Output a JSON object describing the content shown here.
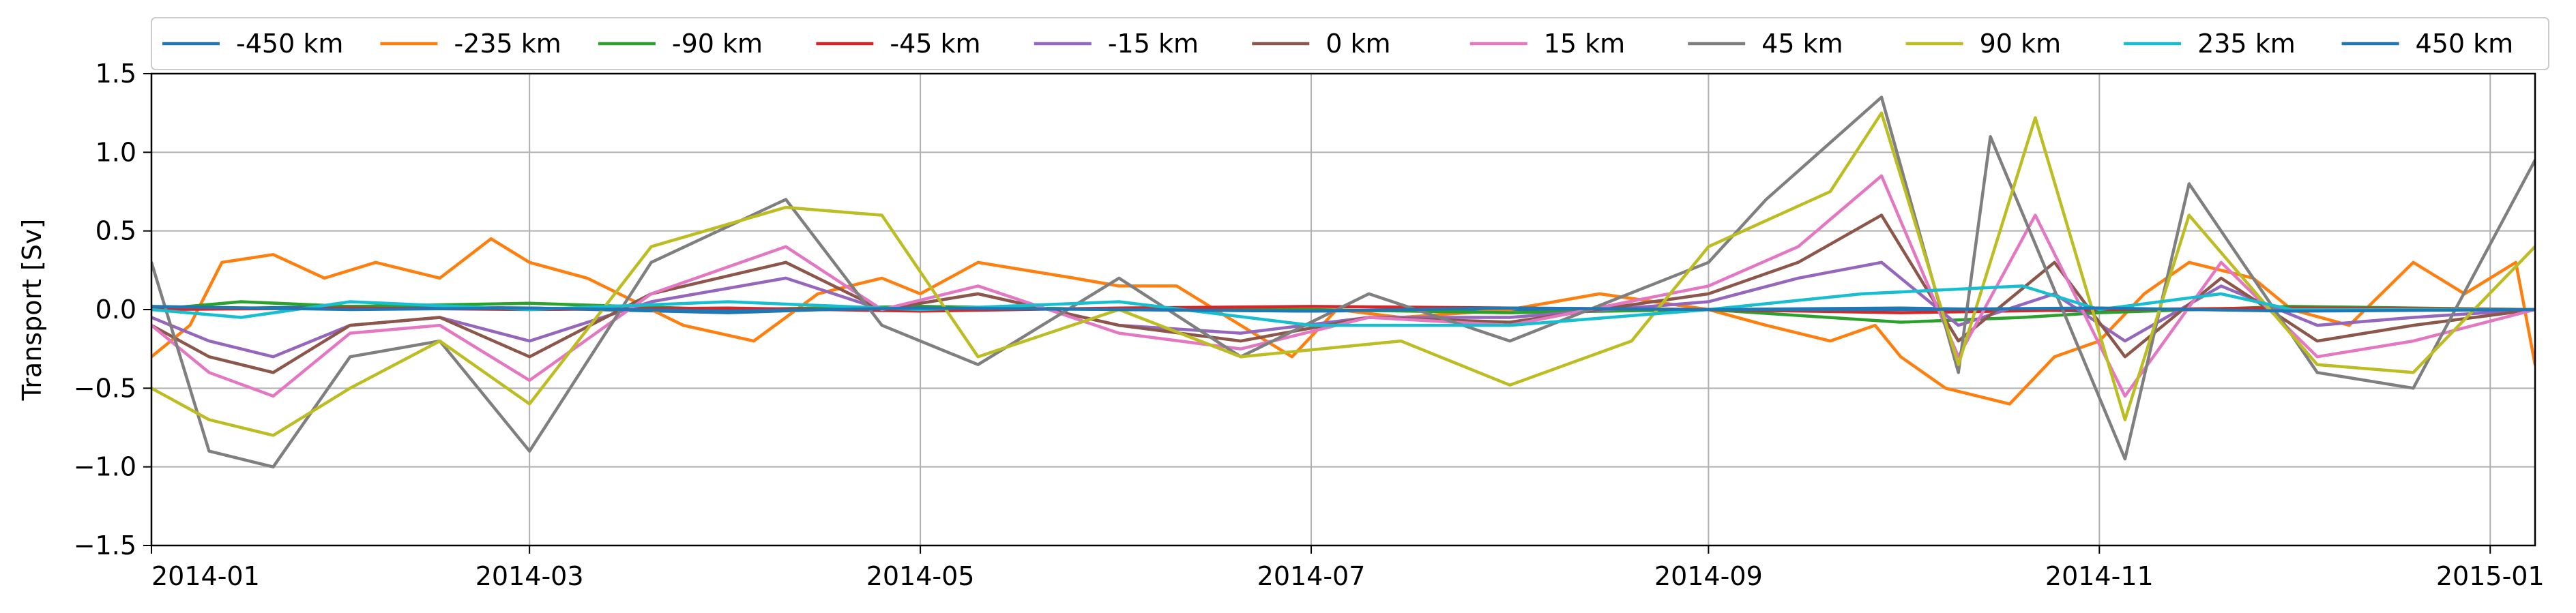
{
  "chart_data": {
    "type": "line",
    "title": "",
    "xlabel": "",
    "ylabel": "Transport [Sv]",
    "x_range": [
      "2014-01-01",
      "2015-01-08"
    ],
    "ylim": [
      -1.5,
      1.5
    ],
    "x_ticks": [
      "2014-01",
      "2014-03",
      "2014-05",
      "2014-07",
      "2014-09",
      "2014-11",
      "2015-01"
    ],
    "y_ticks": [
      "1.5",
      "1.0",
      "0.5",
      "0.0",
      "−0.5",
      "−1.0",
      "−1.5"
    ],
    "grid": true,
    "legend_position": "top",
    "series": [
      {
        "name": "-450 km",
        "color": "#1f77b4",
        "values": [
          [
            "2014-01-01",
            0.0
          ],
          [
            "2014-02-01",
            0.02
          ],
          [
            "2014-03-01",
            0.01
          ],
          [
            "2014-04-01",
            -0.02
          ],
          [
            "2014-05-01",
            0.02
          ],
          [
            "2014-06-01",
            0.0
          ],
          [
            "2014-07-01",
            -0.01
          ],
          [
            "2014-08-01",
            0.0
          ],
          [
            "2014-09-01",
            0.0
          ],
          [
            "2014-10-01",
            0.01
          ],
          [
            "2014-11-01",
            -0.01
          ],
          [
            "2014-12-01",
            0.01
          ],
          [
            "2015-01-08",
            0.0
          ]
        ]
      },
      {
        "name": "-235 km",
        "color": "#ff7f0e",
        "values": [
          [
            "2014-01-01",
            -0.3
          ],
          [
            "2014-01-07",
            -0.1
          ],
          [
            "2014-01-12",
            0.3
          ],
          [
            "2014-01-20",
            0.35
          ],
          [
            "2014-01-28",
            0.2
          ],
          [
            "2014-02-05",
            0.3
          ],
          [
            "2014-02-15",
            0.2
          ],
          [
            "2014-02-23",
            0.45
          ],
          [
            "2014-03-01",
            0.3
          ],
          [
            "2014-03-10",
            0.2
          ],
          [
            "2014-03-20",
            0.0
          ],
          [
            "2014-03-25",
            -0.1
          ],
          [
            "2014-04-05",
            -0.2
          ],
          [
            "2014-04-15",
            0.1
          ],
          [
            "2014-04-25",
            0.2
          ],
          [
            "2014-05-01",
            0.1
          ],
          [
            "2014-05-10",
            0.3
          ],
          [
            "2014-05-25",
            0.2
          ],
          [
            "2014-06-01",
            0.15
          ],
          [
            "2014-06-10",
            0.15
          ],
          [
            "2014-06-20",
            -0.1
          ],
          [
            "2014-06-28",
            -0.3
          ],
          [
            "2014-07-05",
            0.0
          ],
          [
            "2014-07-15",
            -0.05
          ],
          [
            "2014-08-01",
            0.0
          ],
          [
            "2014-08-15",
            0.1
          ],
          [
            "2014-09-01",
            0.0
          ],
          [
            "2014-09-10",
            -0.1
          ],
          [
            "2014-09-20",
            -0.2
          ],
          [
            "2014-09-27",
            -0.1
          ],
          [
            "2014-10-01",
            -0.3
          ],
          [
            "2014-10-08",
            -0.5
          ],
          [
            "2014-10-18",
            -0.6
          ],
          [
            "2014-10-25",
            -0.3
          ],
          [
            "2014-11-01",
            -0.2
          ],
          [
            "2014-11-08",
            0.1
          ],
          [
            "2014-11-15",
            0.3
          ],
          [
            "2014-11-25",
            0.2
          ],
          [
            "2014-12-01",
            0.0
          ],
          [
            "2014-12-10",
            -0.1
          ],
          [
            "2014-12-20",
            0.3
          ],
          [
            "2014-12-28",
            0.1
          ],
          [
            "2015-01-05",
            0.3
          ],
          [
            "2015-01-08",
            -0.35
          ]
        ]
      },
      {
        "name": "-90 km",
        "color": "#2ca02c",
        "values": [
          [
            "2014-01-01",
            0.0
          ],
          [
            "2014-01-15",
            0.05
          ],
          [
            "2014-02-01",
            0.02
          ],
          [
            "2014-03-01",
            0.04
          ],
          [
            "2014-04-01",
            0.0
          ],
          [
            "2014-05-01",
            0.02
          ],
          [
            "2014-06-01",
            0.0
          ],
          [
            "2014-07-01",
            0.0
          ],
          [
            "2014-08-01",
            -0.02
          ],
          [
            "2014-09-01",
            0.0
          ],
          [
            "2014-10-01",
            -0.08
          ],
          [
            "2014-10-20",
            -0.05
          ],
          [
            "2014-11-01",
            -0.02
          ],
          [
            "2014-12-01",
            0.02
          ],
          [
            "2015-01-08",
            0.0
          ]
        ]
      },
      {
        "name": "-45 km",
        "color": "#d62728",
        "values": [
          [
            "2014-01-01",
            0.0
          ],
          [
            "2014-02-01",
            0.01
          ],
          [
            "2014-03-01",
            0.0
          ],
          [
            "2014-04-01",
            0.01
          ],
          [
            "2014-05-01",
            -0.01
          ],
          [
            "2014-06-01",
            0.01
          ],
          [
            "2014-07-01",
            0.02
          ],
          [
            "2014-08-01",
            0.01
          ],
          [
            "2014-09-01",
            0.0
          ],
          [
            "2014-10-01",
            -0.02
          ],
          [
            "2014-11-01",
            0.0
          ],
          [
            "2014-12-01",
            0.01
          ],
          [
            "2015-01-08",
            0.0
          ]
        ]
      },
      {
        "name": "-15 km",
        "color": "#9467bd",
        "values": [
          [
            "2014-01-01",
            -0.05
          ],
          [
            "2014-01-10",
            -0.2
          ],
          [
            "2014-01-20",
            -0.3
          ],
          [
            "2014-02-01",
            -0.1
          ],
          [
            "2014-02-15",
            -0.05
          ],
          [
            "2014-03-01",
            -0.2
          ],
          [
            "2014-03-20",
            0.05
          ],
          [
            "2014-04-10",
            0.2
          ],
          [
            "2014-04-25",
            0.0
          ],
          [
            "2014-05-10",
            0.1
          ],
          [
            "2014-06-01",
            -0.1
          ],
          [
            "2014-06-20",
            -0.15
          ],
          [
            "2014-07-10",
            -0.05
          ],
          [
            "2014-08-01",
            -0.05
          ],
          [
            "2014-09-01",
            0.05
          ],
          [
            "2014-09-15",
            0.2
          ],
          [
            "2014-09-28",
            0.3
          ],
          [
            "2014-10-10",
            -0.1
          ],
          [
            "2014-10-25",
            0.1
          ],
          [
            "2014-11-05",
            -0.2
          ],
          [
            "2014-11-20",
            0.15
          ],
          [
            "2014-12-05",
            -0.1
          ],
          [
            "2014-12-20",
            -0.05
          ],
          [
            "2015-01-08",
            0.0
          ]
        ]
      },
      {
        "name": "0 km",
        "color": "#8c564b",
        "values": [
          [
            "2014-01-01",
            -0.1
          ],
          [
            "2014-01-10",
            -0.3
          ],
          [
            "2014-01-20",
            -0.4
          ],
          [
            "2014-02-01",
            -0.1
          ],
          [
            "2014-02-15",
            -0.05
          ],
          [
            "2014-03-01",
            -0.3
          ],
          [
            "2014-03-20",
            0.1
          ],
          [
            "2014-04-10",
            0.3
          ],
          [
            "2014-04-25",
            0.0
          ],
          [
            "2014-05-10",
            0.1
          ],
          [
            "2014-06-01",
            -0.1
          ],
          [
            "2014-06-20",
            -0.2
          ],
          [
            "2014-07-10",
            -0.05
          ],
          [
            "2014-08-01",
            -0.08
          ],
          [
            "2014-09-01",
            0.1
          ],
          [
            "2014-09-15",
            0.3
          ],
          [
            "2014-09-28",
            0.6
          ],
          [
            "2014-10-10",
            -0.2
          ],
          [
            "2014-10-25",
            0.3
          ],
          [
            "2014-11-05",
            -0.3
          ],
          [
            "2014-11-20",
            0.2
          ],
          [
            "2014-12-05",
            -0.2
          ],
          [
            "2014-12-20",
            -0.1
          ],
          [
            "2015-01-08",
            0.0
          ]
        ]
      },
      {
        "name": "15 km",
        "color": "#e377c2",
        "values": [
          [
            "2014-01-01",
            -0.1
          ],
          [
            "2014-01-10",
            -0.4
          ],
          [
            "2014-01-20",
            -0.55
          ],
          [
            "2014-02-01",
            -0.15
          ],
          [
            "2014-02-15",
            -0.1
          ],
          [
            "2014-03-01",
            -0.45
          ],
          [
            "2014-03-20",
            0.1
          ],
          [
            "2014-04-10",
            0.4
          ],
          [
            "2014-04-25",
            0.0
          ],
          [
            "2014-05-10",
            0.15
          ],
          [
            "2014-06-01",
            -0.15
          ],
          [
            "2014-06-20",
            -0.25
          ],
          [
            "2014-07-10",
            -0.05
          ],
          [
            "2014-08-01",
            -0.1
          ],
          [
            "2014-09-01",
            0.15
          ],
          [
            "2014-09-15",
            0.4
          ],
          [
            "2014-09-28",
            0.85
          ],
          [
            "2014-10-10",
            -0.3
          ],
          [
            "2014-10-22",
            0.6
          ],
          [
            "2014-11-05",
            -0.55
          ],
          [
            "2014-11-20",
            0.3
          ],
          [
            "2014-12-05",
            -0.3
          ],
          [
            "2014-12-20",
            -0.2
          ],
          [
            "2015-01-08",
            0.0
          ]
        ]
      },
      {
        "name": "45 km",
        "color": "#7f7f7f",
        "values": [
          [
            "2014-01-01",
            0.3
          ],
          [
            "2014-01-10",
            -0.9
          ],
          [
            "2014-01-20",
            -1.0
          ],
          [
            "2014-02-01",
            -0.3
          ],
          [
            "2014-02-15",
            -0.2
          ],
          [
            "2014-03-01",
            -0.9
          ],
          [
            "2014-03-20",
            0.3
          ],
          [
            "2014-04-10",
            0.7
          ],
          [
            "2014-04-25",
            -0.1
          ],
          [
            "2014-05-10",
            -0.35
          ],
          [
            "2014-06-01",
            0.2
          ],
          [
            "2014-06-20",
            -0.3
          ],
          [
            "2014-07-10",
            0.1
          ],
          [
            "2014-08-01",
            -0.2
          ],
          [
            "2014-09-01",
            0.3
          ],
          [
            "2014-09-10",
            0.7
          ],
          [
            "2014-09-28",
            1.35
          ],
          [
            "2014-10-10",
            -0.4
          ],
          [
            "2014-10-15",
            1.1
          ],
          [
            "2014-11-05",
            -0.95
          ],
          [
            "2014-11-15",
            0.8
          ],
          [
            "2014-12-05",
            -0.4
          ],
          [
            "2014-12-20",
            -0.5
          ],
          [
            "2015-01-08",
            0.95
          ]
        ]
      },
      {
        "name": "90 km",
        "color": "#bcbd22",
        "values": [
          [
            "2014-01-01",
            -0.5
          ],
          [
            "2014-01-10",
            -0.7
          ],
          [
            "2014-01-20",
            -0.8
          ],
          [
            "2014-02-01",
            -0.5
          ],
          [
            "2014-02-15",
            -0.2
          ],
          [
            "2014-03-01",
            -0.6
          ],
          [
            "2014-03-20",
            0.4
          ],
          [
            "2014-04-10",
            0.65
          ],
          [
            "2014-04-25",
            0.6
          ],
          [
            "2014-05-10",
            -0.3
          ],
          [
            "2014-06-01",
            0.0
          ],
          [
            "2014-06-20",
            -0.3
          ],
          [
            "2014-07-15",
            -0.2
          ],
          [
            "2014-08-01",
            -0.48
          ],
          [
            "2014-08-20",
            -0.2
          ],
          [
            "2014-09-01",
            0.4
          ],
          [
            "2014-09-20",
            0.75
          ],
          [
            "2014-09-28",
            1.25
          ],
          [
            "2014-10-10",
            -0.35
          ],
          [
            "2014-10-22",
            1.22
          ],
          [
            "2014-11-05",
            -0.7
          ],
          [
            "2014-11-15",
            0.6
          ],
          [
            "2014-12-05",
            -0.35
          ],
          [
            "2014-12-20",
            -0.4
          ],
          [
            "2015-01-08",
            0.4
          ]
        ]
      },
      {
        "name": "235 km",
        "color": "#17becf",
        "values": [
          [
            "2014-01-01",
            0.0
          ],
          [
            "2014-01-15",
            -0.05
          ],
          [
            "2014-02-01",
            0.05
          ],
          [
            "2014-03-01",
            0.0
          ],
          [
            "2014-04-01",
            0.05
          ],
          [
            "2014-05-01",
            0.0
          ],
          [
            "2014-06-01",
            0.05
          ],
          [
            "2014-07-01",
            -0.1
          ],
          [
            "2014-08-01",
            -0.1
          ],
          [
            "2014-09-01",
            0.0
          ],
          [
            "2014-09-25",
            0.1
          ],
          [
            "2014-10-20",
            0.15
          ],
          [
            "2014-11-01",
            0.0
          ],
          [
            "2014-11-20",
            0.1
          ],
          [
            "2014-12-01",
            0.0
          ],
          [
            "2015-01-08",
            0.0
          ]
        ]
      },
      {
        "name": "450 km",
        "color": "#1f77b4",
        "values": [
          [
            "2014-01-01",
            0.02
          ],
          [
            "2014-02-01",
            0.0
          ],
          [
            "2014-03-01",
            0.01
          ],
          [
            "2014-04-01",
            -0.01
          ],
          [
            "2014-05-01",
            0.01
          ],
          [
            "2014-06-01",
            0.0
          ],
          [
            "2014-07-01",
            -0.01
          ],
          [
            "2014-08-01",
            0.01
          ],
          [
            "2014-09-01",
            0.0
          ],
          [
            "2014-10-01",
            0.0
          ],
          [
            "2014-11-01",
            0.01
          ],
          [
            "2014-12-01",
            -0.01
          ],
          [
            "2015-01-08",
            0.0
          ]
        ]
      }
    ]
  }
}
